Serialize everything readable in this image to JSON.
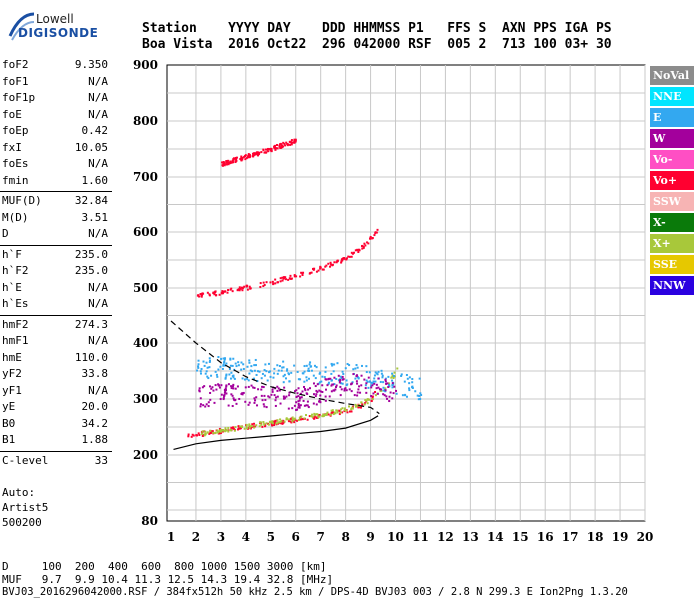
{
  "logo": {
    "line1": "Lowell",
    "line2": "DIGISONDE"
  },
  "header": {
    "row1": "Station    YYYY DAY    DDD HHMMSS P1   FFS S  AXN PPS IGA PS",
    "row2": "Boa Vista  2016 Oct22  296 042000 RSF  005 2  713 100 03+ 30"
  },
  "params": [
    [
      {
        "name": "foF2",
        "value": "9.350"
      },
      {
        "name": "foF1",
        "value": "N/A"
      },
      {
        "name": "foF1p",
        "value": "N/A"
      },
      {
        "name": "foE",
        "value": "N/A"
      },
      {
        "name": "foEp",
        "value": "0.42"
      },
      {
        "name": "fxI",
        "value": "10.05"
      },
      {
        "name": "foEs",
        "value": "N/A"
      },
      {
        "name": "fmin",
        "value": "1.60"
      }
    ],
    [
      {
        "name": "MUF(D)",
        "value": "32.84"
      },
      {
        "name": "M(D)",
        "value": "3.51"
      },
      {
        "name": "D",
        "value": "N/A"
      }
    ],
    [
      {
        "name": "h`F",
        "value": "235.0"
      },
      {
        "name": "h`F2",
        "value": "235.0"
      },
      {
        "name": "h`E",
        "value": "N/A"
      },
      {
        "name": "h`Es",
        "value": "N/A"
      }
    ],
    [
      {
        "name": "hmF2",
        "value": "274.3"
      },
      {
        "name": "hmF1",
        "value": "N/A"
      },
      {
        "name": "hmE",
        "value": "110.0"
      },
      {
        "name": "yF2",
        "value": "33.8"
      },
      {
        "name": "yF1",
        "value": "N/A"
      },
      {
        "name": "yE",
        "value": "20.0"
      },
      {
        "name": "B0",
        "value": "34.2"
      },
      {
        "name": "B1",
        "value": "1.88"
      }
    ],
    [
      {
        "name": "C-level",
        "value": "33"
      }
    ]
  ],
  "auto": {
    "line1": "Auto:",
    "line2": "Artist5",
    "line3": "500200"
  },
  "legend": [
    {
      "label": "NoVal",
      "color": "#8c8c8c"
    },
    {
      "label": "NNE",
      "color": "#00e5ff"
    },
    {
      "label": "E",
      "color": "#33a8f0"
    },
    {
      "label": "W",
      "color": "#a3009c"
    },
    {
      "label": "Vo-",
      "color": "#ff4fc4"
    },
    {
      "label": "Vo+",
      "color": "#ff0030"
    },
    {
      "label": "SSW",
      "color": "#f7b4b4"
    },
    {
      "label": "X-",
      "color": "#0a7a0a"
    },
    {
      "label": "X+",
      "color": "#a8c83a"
    },
    {
      "label": "SSE",
      "color": "#e6c800"
    },
    {
      "label": "NNW",
      "color": "#2a00e0"
    }
  ],
  "footer": {
    "d_row": "D     100  200  400  600  800 1000 1500 3000 [km]",
    "muf_row": "MUF   9.7  9.9 10.4 11.3 12.5 14.3 19.4 32.8 [MHz]",
    "file_row": "BVJ03_2016296042000.RSF / 384fx512h 50 kHz 2.5 km / DPS-4D BVJ03 003 / 2.8 N 299.3 E Ion2Png 1.3.20"
  },
  "chart_data": {
    "type": "scatter",
    "x_ticks": [
      1,
      2,
      3,
      4,
      5,
      6,
      7,
      8,
      9,
      10,
      11,
      12,
      13,
      14,
      15,
      16,
      17,
      18,
      19,
      20
    ],
    "y_ticks": [
      80,
      200,
      300,
      400,
      500,
      600,
      700,
      800,
      900
    ],
    "xlim": [
      1,
      20
    ],
    "ylim_labels": [
      80,
      900
    ],
    "grid": true,
    "legend_position": "right",
    "series": [
      {
        "name": "Vo+",
        "trace": "O-mode F trace",
        "x": [
          1.6,
          2,
          3,
          4,
          5,
          6,
          7,
          8,
          8.6,
          9,
          9.2,
          9.35
        ],
        "y": [
          236,
          238,
          245,
          252,
          258,
          265,
          272,
          280,
          290,
          300,
          320,
          345
        ]
      },
      {
        "name": "X+",
        "trace": "X-mode F trace",
        "x": [
          2.2,
          3,
          4,
          5,
          6,
          7,
          8,
          9,
          9.6,
          10,
          10.1
        ],
        "y": [
          240,
          246,
          252,
          260,
          267,
          274,
          284,
          300,
          325,
          350,
          380
        ]
      },
      {
        "name": "Vo+",
        "trace": "second hop",
        "x": [
          2,
          3,
          4,
          5,
          6,
          7,
          8,
          8.8,
          9.3
        ],
        "y": [
          487,
          494,
          502,
          512,
          523,
          537,
          555,
          580,
          610
        ]
      },
      {
        "name": "Vo+",
        "trace": "third hop",
        "x": [
          3,
          4,
          5,
          6
        ],
        "y": [
          725,
          738,
          752,
          767
        ]
      },
      {
        "name": "E",
        "trace": "spread echoes",
        "x": [
          2,
          3,
          4,
          5,
          6,
          7,
          8,
          9,
          10,
          11
        ],
        "y": [
          360,
          358,
          355,
          352,
          350,
          348,
          345,
          340,
          330,
          320
        ]
      },
      {
        "name": "W",
        "trace": "spread echoes",
        "x": [
          2,
          3,
          4,
          5,
          6,
          8,
          9,
          10
        ],
        "y": [
          305,
          310,
          308,
          306,
          300,
          330,
          320,
          315
        ]
      }
    ],
    "profile_solid": {
      "x": [
        1.1,
        2,
        3,
        4,
        5,
        6,
        7,
        8,
        9,
        9.3
      ],
      "y": [
        210,
        220,
        226,
        230,
        234,
        238,
        242,
        248,
        262,
        270
      ]
    },
    "profile_dashed": {
      "x": [
        1,
        2,
        3,
        4,
        5,
        6,
        7,
        8,
        9,
        9.35
      ],
      "y": [
        440,
        400,
        365,
        340,
        322,
        310,
        300,
        292,
        285,
        274
      ]
    }
  }
}
